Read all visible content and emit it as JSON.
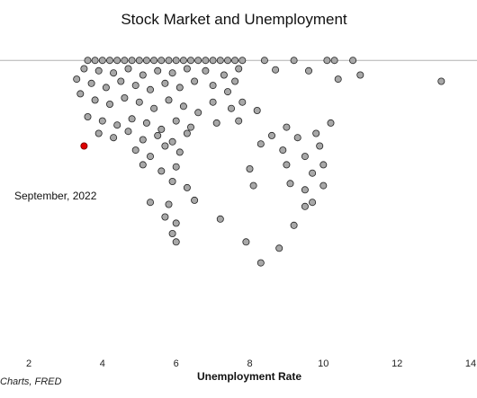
{
  "chart_data": {
    "type": "scatter",
    "title": "Stock Market and Unemployment",
    "xlabel": "Unemployment Rate",
    "ylabel": "",
    "source": "Charts, FRED",
    "xlim": [
      2,
      14
    ],
    "x_ticks": [
      "2",
      "4",
      "6",
      "8",
      "10",
      "12",
      "14"
    ],
    "ylim": [
      -12,
      1
    ],
    "grid": false,
    "colors": {
      "point_fill": "#a8a8a8",
      "point_stroke": "#222222",
      "highlight": "#dd0000",
      "baseline": "#b0b0b0"
    },
    "highlight": {
      "label": "September, 2022",
      "x": 3.5,
      "y": -4.1
    },
    "series": [
      {
        "points": [
          [
            3.6,
            0
          ],
          [
            3.8,
            0
          ],
          [
            4.0,
            0
          ],
          [
            4.2,
            0
          ],
          [
            4.4,
            0
          ],
          [
            4.6,
            0
          ],
          [
            4.8,
            0
          ],
          [
            5.0,
            0
          ],
          [
            5.2,
            0
          ],
          [
            5.4,
            0
          ],
          [
            5.6,
            0
          ],
          [
            5.8,
            0
          ],
          [
            6.0,
            0
          ],
          [
            6.2,
            0
          ],
          [
            6.4,
            0
          ],
          [
            6.6,
            0
          ],
          [
            6.8,
            0
          ],
          [
            7.0,
            0
          ],
          [
            7.2,
            0
          ],
          [
            7.4,
            0
          ],
          [
            7.6,
            0
          ],
          [
            7.8,
            0
          ],
          [
            8.4,
            0
          ],
          [
            9.2,
            0
          ],
          [
            10.1,
            0
          ],
          [
            10.3,
            0
          ],
          [
            10.8,
            0
          ],
          [
            3.5,
            -0.4
          ],
          [
            3.9,
            -0.5
          ],
          [
            4.3,
            -0.6
          ],
          [
            4.7,
            -0.4
          ],
          [
            5.1,
            -0.7
          ],
          [
            5.5,
            -0.5
          ],
          [
            5.9,
            -0.6
          ],
          [
            6.3,
            -0.4
          ],
          [
            6.8,
            -0.5
          ],
          [
            7.3,
            -0.7
          ],
          [
            7.7,
            -0.4
          ],
          [
            8.7,
            -0.45
          ],
          [
            9.6,
            -0.5
          ],
          [
            3.3,
            -0.9
          ],
          [
            3.7,
            -1.1
          ],
          [
            4.1,
            -1.3
          ],
          [
            4.5,
            -1.0
          ],
          [
            4.9,
            -1.2
          ],
          [
            5.3,
            -1.4
          ],
          [
            5.7,
            -1.1
          ],
          [
            6.1,
            -1.3
          ],
          [
            6.5,
            -1.0
          ],
          [
            7.0,
            -1.2
          ],
          [
            7.4,
            -1.5
          ],
          [
            7.6,
            -1.0
          ],
          [
            10.4,
            -0.9
          ],
          [
            11.0,
            -0.7
          ],
          [
            13.2,
            -1.0
          ],
          [
            3.4,
            -1.6
          ],
          [
            3.8,
            -1.9
          ],
          [
            4.2,
            -2.1
          ],
          [
            4.6,
            -1.8
          ],
          [
            5.0,
            -2.0
          ],
          [
            5.4,
            -2.3
          ],
          [
            5.8,
            -1.9
          ],
          [
            6.2,
            -2.2
          ],
          [
            6.6,
            -2.5
          ],
          [
            7.0,
            -2.0
          ],
          [
            7.5,
            -2.3
          ],
          [
            7.8,
            -2.0
          ],
          [
            8.2,
            -2.4
          ],
          [
            3.6,
            -2.7
          ],
          [
            4.0,
            -2.9
          ],
          [
            4.4,
            -3.1
          ],
          [
            4.8,
            -2.8
          ],
          [
            5.2,
            -3.0
          ],
          [
            5.6,
            -3.3
          ],
          [
            6.0,
            -2.9
          ],
          [
            6.4,
            -3.2
          ],
          [
            7.1,
            -3.0
          ],
          [
            7.7,
            -2.9
          ],
          [
            9.0,
            -3.2
          ],
          [
            10.2,
            -3.0
          ],
          [
            3.9,
            -3.5
          ],
          [
            4.3,
            -3.7
          ],
          [
            4.7,
            -3.4
          ],
          [
            5.1,
            -3.8
          ],
          [
            5.5,
            -3.6
          ],
          [
            5.9,
            -3.9
          ],
          [
            6.3,
            -3.5
          ],
          [
            8.6,
            -3.6
          ],
          [
            9.3,
            -3.7
          ],
          [
            9.8,
            -3.5
          ],
          [
            4.9,
            -4.3
          ],
          [
            5.3,
            -4.6
          ],
          [
            5.7,
            -4.1
          ],
          [
            6.1,
            -4.4
          ],
          [
            8.3,
            -4.0
          ],
          [
            8.9,
            -4.3
          ],
          [
            9.5,
            -4.6
          ],
          [
            9.9,
            -4.1
          ],
          [
            5.1,
            -5.0
          ],
          [
            5.6,
            -5.3
          ],
          [
            6.0,
            -5.1
          ],
          [
            8.0,
            -5.2
          ],
          [
            9.0,
            -5.0
          ],
          [
            9.7,
            -5.4
          ],
          [
            10.0,
            -5.0
          ],
          [
            5.9,
            -5.8
          ],
          [
            6.3,
            -6.1
          ],
          [
            8.1,
            -6.0
          ],
          [
            9.1,
            -5.9
          ],
          [
            9.5,
            -6.2
          ],
          [
            10.0,
            -6.0
          ],
          [
            5.3,
            -6.8
          ],
          [
            5.8,
            -6.9
          ],
          [
            6.5,
            -6.7
          ],
          [
            9.5,
            -7.0
          ],
          [
            9.7,
            -6.8
          ],
          [
            5.7,
            -7.5
          ],
          [
            6.0,
            -7.8
          ],
          [
            7.2,
            -7.6
          ],
          [
            9.2,
            -7.9
          ],
          [
            5.9,
            -8.3
          ],
          [
            6.0,
            -8.7
          ],
          [
            7.9,
            -8.7
          ],
          [
            8.8,
            -9.0
          ],
          [
            8.3,
            -9.7
          ]
        ]
      }
    ]
  }
}
